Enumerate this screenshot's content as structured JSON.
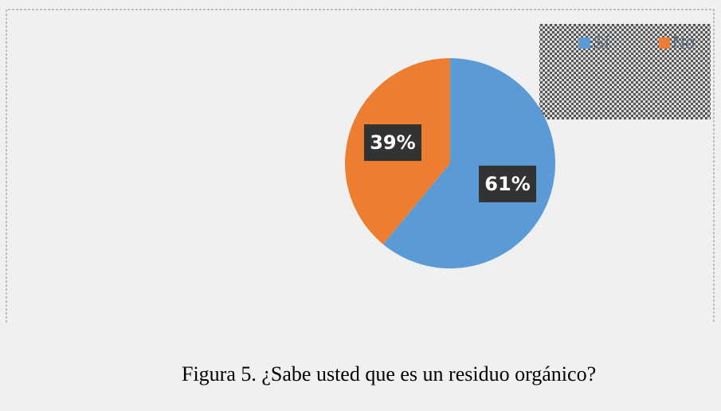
{
  "chart_data": {
    "type": "pie",
    "title": "Figura 5. ¿Sabe usted que es un residuo orgánico?",
    "categories": [
      "Sí",
      "No"
    ],
    "values": [
      61,
      39
    ],
    "value_labels": [
      "61%",
      "39%"
    ],
    "colors": [
      "#5b9bd5",
      "#ed7d31"
    ],
    "legend": "top-right"
  }
}
